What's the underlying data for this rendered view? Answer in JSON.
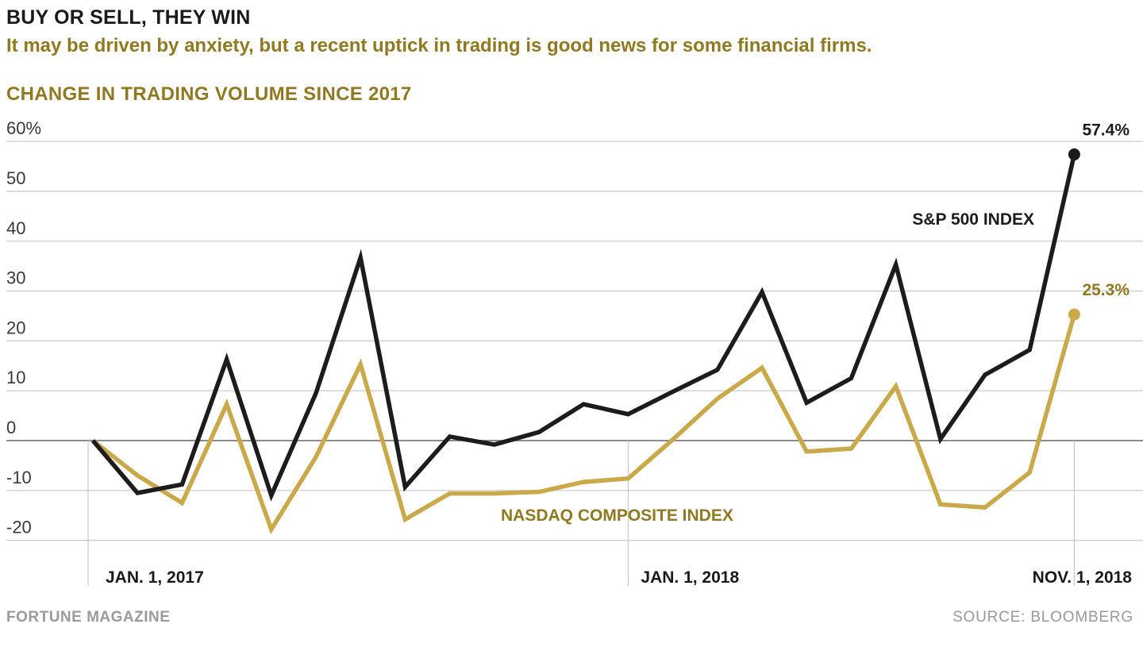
{
  "header": {
    "headline": "BUY OR SELL, THEY WIN",
    "deck": "It may be driven by anxiety, but a recent uptick in trading is good news for some financial firms."
  },
  "footer": {
    "credit": "FORTUNE MAGAZINE",
    "source": "SOURCE: BLOOMBERG"
  },
  "colors": {
    "sp500": "#1d1b1c",
    "nasdaq": "#c9a94a",
    "accent_text": "#8f7a22",
    "grid": "#c8c8c8",
    "baseline": "#666666"
  },
  "chart_data": {
    "type": "line",
    "title": "CHANGE IN TRADING VOLUME SINCE 2017",
    "y_ticks": [
      "60%",
      "50",
      "40",
      "30",
      "20",
      "10",
      "0",
      "-10",
      "-20"
    ],
    "y_tick_values": [
      60,
      50,
      40,
      30,
      20,
      10,
      0,
      -10,
      -20
    ],
    "ylim": [
      -20,
      60
    ],
    "x": [
      "2017-01",
      "2017-02",
      "2017-03",
      "2017-04",
      "2017-05",
      "2017-06",
      "2017-07",
      "2017-08",
      "2017-09",
      "2017-10",
      "2017-11",
      "2017-12",
      "2018-01",
      "2018-02",
      "2018-03",
      "2018-04",
      "2018-05",
      "2018-06",
      "2018-07",
      "2018-08",
      "2018-09",
      "2018-10",
      "2018-11"
    ],
    "x_tick_labels": [
      {
        "x": "2017-01",
        "label": "JAN. 1, 2017"
      },
      {
        "x": "2018-01",
        "label": "JAN. 1, 2018"
      },
      {
        "x": "2018-11",
        "label": "NOV. 1, 2018"
      }
    ],
    "series": [
      {
        "name": "S&P 500 INDEX",
        "color": "#1d1b1c",
        "values": [
          0,
          -10.5,
          -8.8,
          16.3,
          -11,
          9.5,
          36.7,
          -9.3,
          0.8,
          -0.8,
          1.7,
          7.3,
          5.3,
          9.8,
          14.2,
          29.8,
          7.6,
          12.5,
          35.3,
          0.3,
          13.2,
          18.2,
          57.4
        ],
        "end_label": "57.4%"
      },
      {
        "name": "NASDAQ COMPOSITE INDEX",
        "color": "#c9a94a",
        "values": [
          0,
          -7,
          -12.5,
          7.3,
          -17.8,
          -3.3,
          15.3,
          -15.8,
          -10.6,
          -10.6,
          -10.3,
          -8.3,
          -7.6,
          0.2,
          8.4,
          14.6,
          -2.2,
          -1.6,
          10.9,
          -12.8,
          -13.4,
          -6.4,
          25.3
        ],
        "end_label": "25.3%"
      }
    ],
    "grid": true,
    "legend": "inline labels"
  }
}
